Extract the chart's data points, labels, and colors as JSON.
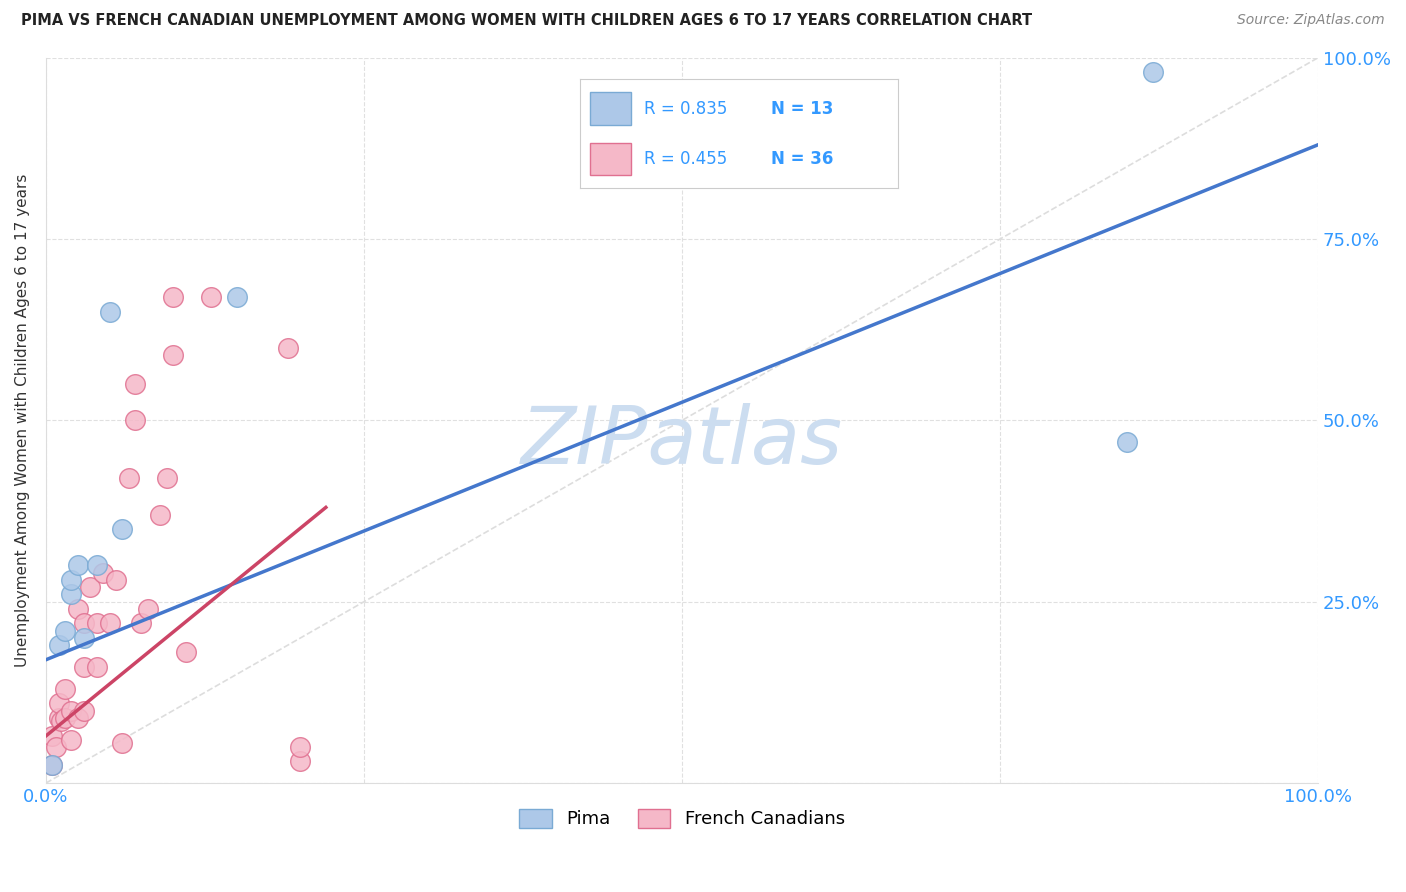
{
  "title": "PIMA VS FRENCH CANADIAN UNEMPLOYMENT AMONG WOMEN WITH CHILDREN AGES 6 TO 17 YEARS CORRELATION CHART",
  "source": "Source: ZipAtlas.com",
  "ylabel": "Unemployment Among Women with Children Ages 6 to 17 years",
  "xlim": [
    0,
    1
  ],
  "ylim": [
    0,
    1
  ],
  "xticks": [
    0,
    0.25,
    0.5,
    0.75,
    1.0
  ],
  "yticks": [
    0.0,
    0.25,
    0.5,
    0.75,
    1.0
  ],
  "xticklabels": [
    "0.0%",
    "",
    "",
    "",
    "100.0%"
  ],
  "yticklabels_right": [
    "",
    "25.0%",
    "50.0%",
    "75.0%",
    "100.0%"
  ],
  "pima_color": "#adc8e8",
  "pima_edge_color": "#7aaad4",
  "french_color": "#f5b8c8",
  "french_edge_color": "#e07090",
  "pima_R": 0.835,
  "pima_N": 13,
  "french_R": 0.455,
  "french_N": 36,
  "pima_line_color": "#4477cc",
  "french_line_color": "#cc4466",
  "diagonal_color": "#dddddd",
  "watermark": "ZIPatlas",
  "watermark_color": "#ccddf0",
  "legend_color": "#3399ff",
  "background": "#ffffff",
  "pima_points_x": [
    0.005,
    0.01,
    0.015,
    0.02,
    0.02,
    0.025,
    0.03,
    0.04,
    0.05,
    0.06,
    0.15,
    0.85,
    0.87
  ],
  "pima_points_y": [
    0.025,
    0.19,
    0.21,
    0.26,
    0.28,
    0.3,
    0.2,
    0.3,
    0.65,
    0.35,
    0.67,
    0.47,
    0.98
  ],
  "french_points_x": [
    0.005,
    0.005,
    0.008,
    0.01,
    0.01,
    0.012,
    0.015,
    0.015,
    0.02,
    0.02,
    0.025,
    0.025,
    0.03,
    0.03,
    0.03,
    0.035,
    0.04,
    0.04,
    0.045,
    0.05,
    0.055,
    0.06,
    0.065,
    0.07,
    0.07,
    0.075,
    0.08,
    0.09,
    0.095,
    0.1,
    0.1,
    0.11,
    0.13,
    0.19,
    0.2,
    0.2
  ],
  "french_points_y": [
    0.025,
    0.065,
    0.05,
    0.09,
    0.11,
    0.085,
    0.09,
    0.13,
    0.06,
    0.1,
    0.09,
    0.24,
    0.1,
    0.16,
    0.22,
    0.27,
    0.16,
    0.22,
    0.29,
    0.22,
    0.28,
    0.055,
    0.42,
    0.5,
    0.55,
    0.22,
    0.24,
    0.37,
    0.42,
    0.59,
    0.67,
    0.18,
    0.67,
    0.6,
    0.03,
    0.05
  ],
  "pima_line_x": [
    0.0,
    1.0
  ],
  "pima_line_y": [
    0.17,
    0.88
  ],
  "french_line_x": [
    0.0,
    0.22
  ],
  "french_line_y": [
    0.065,
    0.38
  ]
}
